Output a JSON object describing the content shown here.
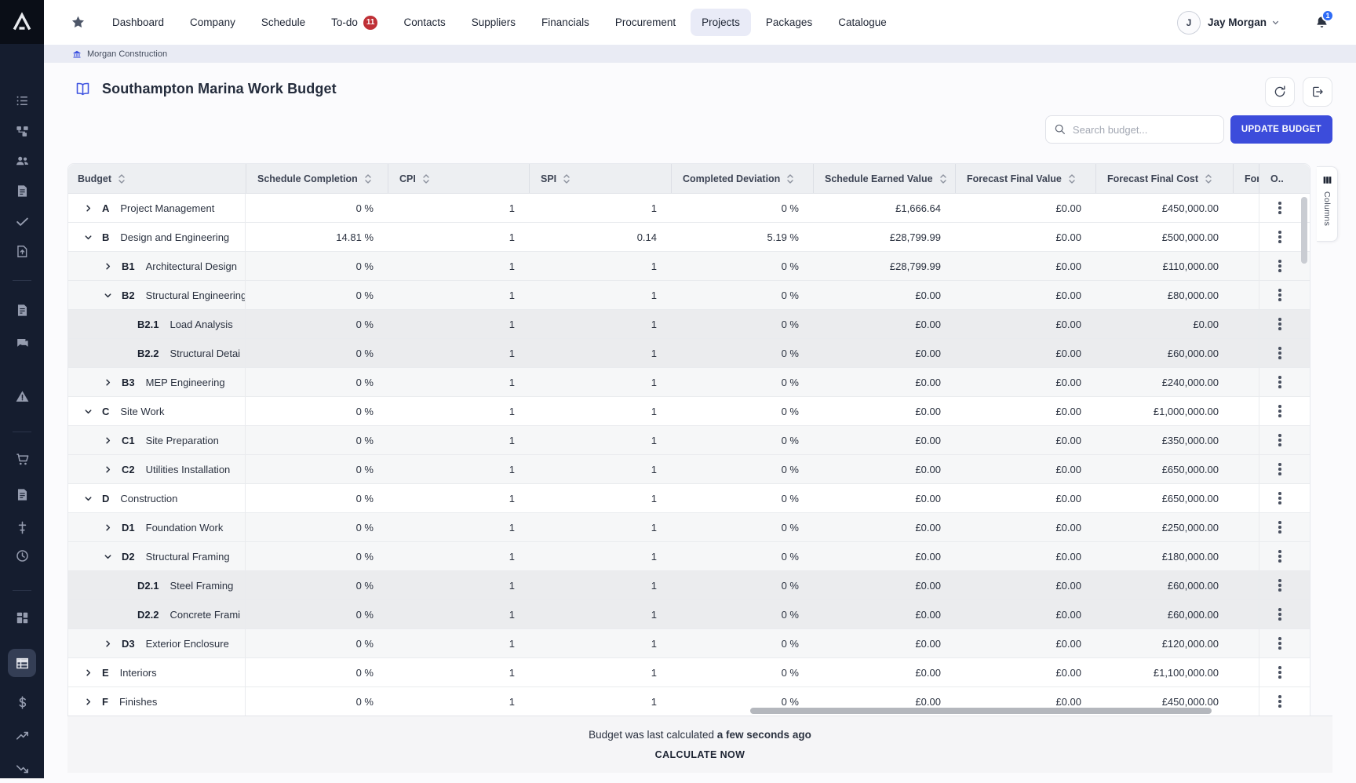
{
  "nav": {
    "items": [
      {
        "label": "Dashboard"
      },
      {
        "label": "Company"
      },
      {
        "label": "Schedule"
      },
      {
        "label": "To-do",
        "badge": "11"
      },
      {
        "label": "Contacts"
      },
      {
        "label": "Suppliers"
      },
      {
        "label": "Financials"
      },
      {
        "label": "Procurement"
      },
      {
        "label": "Projects",
        "active": true
      },
      {
        "label": "Packages"
      },
      {
        "label": "Catalogue"
      }
    ],
    "user": {
      "initial": "J",
      "name": "Jay Morgan"
    },
    "notifications": "1"
  },
  "breadcrumb": {
    "label": "Morgan Construction"
  },
  "page": {
    "title": "Southampton Marina Work Budget",
    "search_placeholder": "Search budget...",
    "update_button": "UPDATE BUDGET",
    "columns_tab": "Columns"
  },
  "table": {
    "columns": [
      {
        "label": "Budget",
        "sortable": true
      },
      {
        "label": "Schedule Completion",
        "sortable": true
      },
      {
        "label": "CPI",
        "sortable": true
      },
      {
        "label": "SPI",
        "sortable": true
      },
      {
        "label": "Completed Deviation",
        "sortable": true
      },
      {
        "label": "Schedule Earned Value",
        "sortable": true
      },
      {
        "label": "Forecast Final Value",
        "sortable": true
      },
      {
        "label": "Forecast Final Cost",
        "sortable": true
      },
      {
        "label": "Fore",
        "sortable": false
      },
      {
        "label": "O..",
        "sortable": false
      }
    ],
    "rows": [
      {
        "code": "A",
        "name": "Project Management",
        "level": 1,
        "expand": "right",
        "schedule_completion": "0 %",
        "cpi": "1",
        "spi": "1",
        "completed_deviation": "0 %",
        "schedule_earned_value": "£1,666.64",
        "forecast_final_value": "£0.00",
        "forecast_final_cost": "£450,000.00"
      },
      {
        "code": "B",
        "name": "Design and Engineering",
        "level": 1,
        "expand": "down",
        "schedule_completion": "14.81 %",
        "cpi": "1",
        "spi": "0.14",
        "completed_deviation": "5.19 %",
        "schedule_earned_value": "£28,799.99",
        "forecast_final_value": "£0.00",
        "forecast_final_cost": "£500,000.00"
      },
      {
        "code": "B1",
        "name": "Architectural Design",
        "level": 2,
        "expand": "right",
        "schedule_completion": "0 %",
        "cpi": "1",
        "spi": "1",
        "completed_deviation": "0 %",
        "schedule_earned_value": "£28,799.99",
        "forecast_final_value": "£0.00",
        "forecast_final_cost": "£110,000.00"
      },
      {
        "code": "B2",
        "name": "Structural Engineering",
        "level": 2,
        "expand": "down",
        "schedule_completion": "0 %",
        "cpi": "1",
        "spi": "1",
        "completed_deviation": "0 %",
        "schedule_earned_value": "£0.00",
        "forecast_final_value": "£0.00",
        "forecast_final_cost": "£80,000.00"
      },
      {
        "code": "B2.1",
        "name": "Load Analysis",
        "level": 3,
        "expand": "none",
        "schedule_completion": "0 %",
        "cpi": "1",
        "spi": "1",
        "completed_deviation": "0 %",
        "schedule_earned_value": "£0.00",
        "forecast_final_value": "£0.00",
        "forecast_final_cost": "£0.00"
      },
      {
        "code": "B2.2",
        "name": "Structural Detai",
        "level": 3,
        "expand": "none",
        "schedule_completion": "0 %",
        "cpi": "1",
        "spi": "1",
        "completed_deviation": "0 %",
        "schedule_earned_value": "£0.00",
        "forecast_final_value": "£0.00",
        "forecast_final_cost": "£60,000.00"
      },
      {
        "code": "B3",
        "name": "MEP Engineering",
        "level": 2,
        "expand": "right",
        "schedule_completion": "0 %",
        "cpi": "1",
        "spi": "1",
        "completed_deviation": "0 %",
        "schedule_earned_value": "£0.00",
        "forecast_final_value": "£0.00",
        "forecast_final_cost": "£240,000.00"
      },
      {
        "code": "C",
        "name": "Site Work",
        "level": 1,
        "expand": "down",
        "schedule_completion": "0 %",
        "cpi": "1",
        "spi": "1",
        "completed_deviation": "0 %",
        "schedule_earned_value": "£0.00",
        "forecast_final_value": "£0.00",
        "forecast_final_cost": "£1,000,000.00"
      },
      {
        "code": "C1",
        "name": "Site Preparation",
        "level": 2,
        "expand": "right",
        "schedule_completion": "0 %",
        "cpi": "1",
        "spi": "1",
        "completed_deviation": "0 %",
        "schedule_earned_value": "£0.00",
        "forecast_final_value": "£0.00",
        "forecast_final_cost": "£350,000.00"
      },
      {
        "code": "C2",
        "name": "Utilities Installation",
        "level": 2,
        "expand": "right",
        "schedule_completion": "0 %",
        "cpi": "1",
        "spi": "1",
        "completed_deviation": "0 %",
        "schedule_earned_value": "£0.00",
        "forecast_final_value": "£0.00",
        "forecast_final_cost": "£650,000.00"
      },
      {
        "code": "D",
        "name": "Construction",
        "level": 1,
        "expand": "down",
        "schedule_completion": "0 %",
        "cpi": "1",
        "spi": "1",
        "completed_deviation": "0 %",
        "schedule_earned_value": "£0.00",
        "forecast_final_value": "£0.00",
        "forecast_final_cost": "£650,000.00"
      },
      {
        "code": "D1",
        "name": "Foundation Work",
        "level": 2,
        "expand": "right",
        "schedule_completion": "0 %",
        "cpi": "1",
        "spi": "1",
        "completed_deviation": "0 %",
        "schedule_earned_value": "£0.00",
        "forecast_final_value": "£0.00",
        "forecast_final_cost": "£250,000.00"
      },
      {
        "code": "D2",
        "name": "Structural Framing",
        "level": 2,
        "expand": "down",
        "schedule_completion": "0 %",
        "cpi": "1",
        "spi": "1",
        "completed_deviation": "0 %",
        "schedule_earned_value": "£0.00",
        "forecast_final_value": "£0.00",
        "forecast_final_cost": "£180,000.00"
      },
      {
        "code": "D2.1",
        "name": "Steel Framing",
        "level": 3,
        "expand": "none",
        "schedule_completion": "0 %",
        "cpi": "1",
        "spi": "1",
        "completed_deviation": "0 %",
        "schedule_earned_value": "£0.00",
        "forecast_final_value": "£0.00",
        "forecast_final_cost": "£60,000.00"
      },
      {
        "code": "D2.2",
        "name": "Concrete Frami",
        "level": 3,
        "expand": "none",
        "schedule_completion": "0 %",
        "cpi": "1",
        "spi": "1",
        "completed_deviation": "0 %",
        "schedule_earned_value": "£0.00",
        "forecast_final_value": "£0.00",
        "forecast_final_cost": "£60,000.00"
      },
      {
        "code": "D3",
        "name": "Exterior Enclosure",
        "level": 2,
        "expand": "right",
        "schedule_completion": "0 %",
        "cpi": "1",
        "spi": "1",
        "completed_deviation": "0 %",
        "schedule_earned_value": "£0.00",
        "forecast_final_value": "£0.00",
        "forecast_final_cost": "£120,000.00"
      },
      {
        "code": "E",
        "name": "Interiors",
        "level": 1,
        "expand": "right",
        "schedule_completion": "0 %",
        "cpi": "1",
        "spi": "1",
        "completed_deviation": "0 %",
        "schedule_earned_value": "£0.00",
        "forecast_final_value": "£0.00",
        "forecast_final_cost": "£1,100,000.00"
      },
      {
        "code": "F",
        "name": "Finishes",
        "level": 1,
        "expand": "right",
        "schedule_completion": "0 %",
        "cpi": "1",
        "spi": "1",
        "completed_deviation": "0 %",
        "schedule_earned_value": "£0.00",
        "forecast_final_value": "£0.00",
        "forecast_final_cost": "£450,000.00"
      }
    ]
  },
  "footer": {
    "message_prefix": "Budget was last calculated ",
    "message_em": "a few seconds ago",
    "action": "CALCULATE NOW"
  },
  "sidebar": {
    "active": "budget-table",
    "icons": [
      "list",
      "workflow",
      "people",
      "document",
      "check",
      "file-upload",
      "divider",
      "invoice",
      "chat",
      "warning",
      "divider",
      "cart",
      "document-alt",
      "adjustments",
      "clock",
      "divider",
      "dashboard-grid",
      "budget-table",
      "currency",
      "trend-up",
      "trend-down"
    ]
  },
  "colors": {
    "accent_blue": "#3c4cdb",
    "badge_red": "#bf3036",
    "notification_blue": "#2f6cf6",
    "sidebar_bg": "#151d2f"
  }
}
